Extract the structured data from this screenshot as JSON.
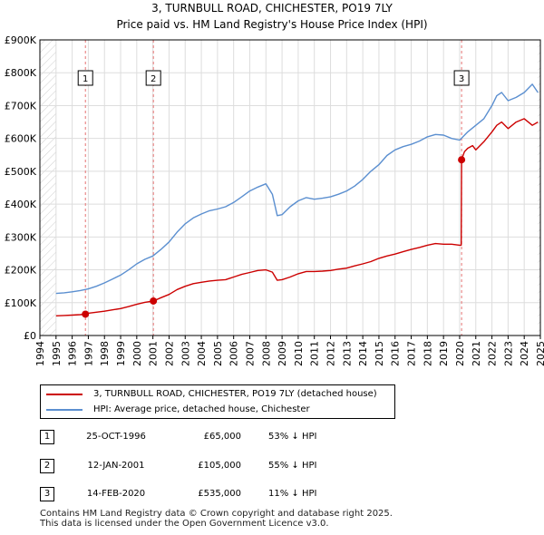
{
  "chart_data": {
    "type": "line",
    "title": "3, TURNBULL ROAD, CHICHESTER, PO19 7LY",
    "subtitle": "Price paid vs. HM Land Registry's House Price Index (HPI)",
    "xlabel": "",
    "ylabel": "",
    "xlim": [
      1994,
      2025
    ],
    "ylim": [
      0,
      900000
    ],
    "y_ticks": [
      {
        "value": 0,
        "label": "£0"
      },
      {
        "value": 100000,
        "label": "£100K"
      },
      {
        "value": 200000,
        "label": "£200K"
      },
      {
        "value": 300000,
        "label": "£300K"
      },
      {
        "value": 400000,
        "label": "£400K"
      },
      {
        "value": 500000,
        "label": "£500K"
      },
      {
        "value": 600000,
        "label": "£600K"
      },
      {
        "value": 700000,
        "label": "£700K"
      },
      {
        "value": 800000,
        "label": "£800K"
      },
      {
        "value": 900000,
        "label": "£900K"
      }
    ],
    "x_ticks": [
      "1994",
      "1995",
      "1996",
      "1997",
      "1998",
      "1999",
      "2000",
      "2001",
      "2002",
      "2003",
      "2004",
      "2005",
      "2006",
      "2007",
      "2008",
      "2009",
      "2010",
      "2011",
      "2012",
      "2013",
      "2014",
      "2015",
      "2016",
      "2017",
      "2018",
      "2019",
      "2020",
      "2021",
      "2022",
      "2023",
      "2024",
      "2025"
    ],
    "hatched_ranges": [
      [
        1994,
        1995.0
      ],
      [
        2024.85,
        2025
      ]
    ],
    "grid": true,
    "series": [
      {
        "name": "3, TURNBULL ROAD, CHICHESTER, PO19 7LY (detached house)",
        "color": "#cc0000",
        "x": [
          1995.0,
          1995.5,
          1996.0,
          1996.5,
          1996.82,
          1997.0,
          1997.5,
          1998.0,
          1998.5,
          1999.0,
          1999.5,
          2000.0,
          2000.5,
          2001.03,
          2001.5,
          2002.0,
          2002.5,
          2003.0,
          2003.5,
          2004.0,
          2004.5,
          2005.0,
          2005.5,
          2006.0,
          2006.5,
          2007.0,
          2007.5,
          2008.0,
          2008.4,
          2008.7,
          2009.0,
          2009.5,
          2010.0,
          2010.5,
          2011.0,
          2011.5,
          2012.0,
          2012.5,
          2013.0,
          2013.5,
          2014.0,
          2014.5,
          2015.0,
          2015.5,
          2016.0,
          2016.5,
          2017.0,
          2017.5,
          2018.0,
          2018.5,
          2019.0,
          2019.5,
          2020.0,
          2020.1,
          2020.12,
          2020.3,
          2020.5,
          2020.8,
          2021.0,
          2021.5,
          2022.0,
          2022.3,
          2022.6,
          2023.0,
          2023.5,
          2024.0,
          2024.5,
          2024.85
        ],
        "values": [
          60000,
          61000,
          62000,
          63500,
          65000,
          68000,
          71000,
          74000,
          78000,
          82000,
          88000,
          95000,
          101000,
          105000,
          115000,
          125000,
          140000,
          150000,
          158000,
          162000,
          166000,
          168000,
          170000,
          178000,
          186000,
          192000,
          198000,
          200000,
          193000,
          168000,
          170000,
          178000,
          188000,
          195000,
          195000,
          196000,
          198000,
          202000,
          205000,
          212000,
          218000,
          225000,
          235000,
          242000,
          248000,
          255000,
          262000,
          268000,
          275000,
          280000,
          278000,
          278000,
          275000,
          275000,
          535000,
          560000,
          570000,
          578000,
          565000,
          590000,
          620000,
          640000,
          650000,
          630000,
          650000,
          660000,
          640000,
          650000
        ]
      },
      {
        "name": "HPI: Average price, detached house, Chichester",
        "color": "#5b8fd0",
        "x": [
          1995.0,
          1995.5,
          1996.0,
          1996.5,
          1997.0,
          1997.5,
          1998.0,
          1998.5,
          1999.0,
          1999.5,
          2000.0,
          2000.5,
          2001.0,
          2001.5,
          2002.0,
          2002.5,
          2003.0,
          2003.5,
          2004.0,
          2004.5,
          2005.0,
          2005.5,
          2006.0,
          2006.5,
          2007.0,
          2007.5,
          2008.0,
          2008.4,
          2008.7,
          2009.0,
          2009.5,
          2010.0,
          2010.5,
          2011.0,
          2011.5,
          2012.0,
          2012.5,
          2013.0,
          2013.5,
          2014.0,
          2014.5,
          2015.0,
          2015.5,
          2016.0,
          2016.5,
          2017.0,
          2017.5,
          2018.0,
          2018.5,
          2019.0,
          2019.5,
          2020.0,
          2020.5,
          2021.0,
          2021.5,
          2022.0,
          2022.3,
          2022.6,
          2023.0,
          2023.5,
          2024.0,
          2024.5,
          2024.85
        ],
        "values": [
          128000,
          130000,
          133000,
          137000,
          142000,
          150000,
          160000,
          172000,
          184000,
          200000,
          218000,
          232000,
          242000,
          262000,
          285000,
          315000,
          340000,
          358000,
          370000,
          380000,
          385000,
          392000,
          405000,
          422000,
          440000,
          452000,
          462000,
          430000,
          365000,
          368000,
          392000,
          410000,
          420000,
          415000,
          418000,
          422000,
          430000,
          440000,
          455000,
          475000,
          500000,
          520000,
          548000,
          565000,
          575000,
          582000,
          592000,
          605000,
          612000,
          610000,
          600000,
          595000,
          620000,
          640000,
          660000,
          700000,
          730000,
          740000,
          715000,
          725000,
          740000,
          765000,
          740000
        ]
      }
    ],
    "markers": [
      {
        "label": "1",
        "x": 1996.82,
        "value": 65000
      },
      {
        "label": "2",
        "x": 2001.03,
        "value": 105000
      },
      {
        "label": "3",
        "x": 2020.12,
        "value": 535000
      }
    ]
  },
  "legend": {
    "items": [
      {
        "label": "3, TURNBULL ROAD, CHICHESTER, PO19 7LY (detached house)",
        "color": "#cc0000"
      },
      {
        "label": "HPI: Average price, detached house, Chichester",
        "color": "#5b8fd0"
      }
    ]
  },
  "sales": [
    {
      "num": "1",
      "date": "25-OCT-1996",
      "price": "£65,000",
      "hpi": "53% ↓ HPI"
    },
    {
      "num": "2",
      "date": "12-JAN-2001",
      "price": "£105,000",
      "hpi": "55% ↓ HPI"
    },
    {
      "num": "3",
      "date": "14-FEB-2020",
      "price": "£535,000",
      "hpi": "11% ↓ HPI"
    }
  ],
  "footer": {
    "line1": "Contains HM Land Registry data © Crown copyright and database right 2025.",
    "line2": "This data is licensed under the Open Government Licence v3.0."
  }
}
